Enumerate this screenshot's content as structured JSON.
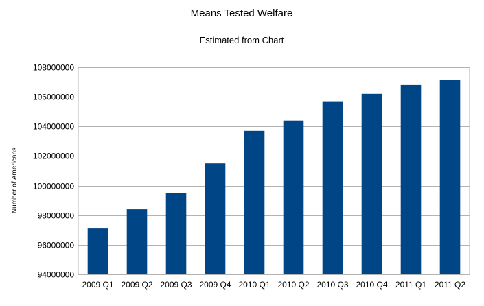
{
  "chart_data": {
    "type": "bar",
    "title": "Means Tested Welfare",
    "subtitle": "Estimated from Chart",
    "xlabel": "",
    "ylabel": "Number of Americans",
    "categories": [
      "2009 Q1",
      "2009 Q2",
      "2009 Q3",
      "2009 Q4",
      "2010 Q1",
      "2010 Q2",
      "2010 Q3",
      "2010 Q4",
      "2011 Q1",
      "2011 Q2"
    ],
    "values": [
      97100000,
      98400000,
      99500000,
      101500000,
      103700000,
      104400000,
      105700000,
      106200000,
      106800000,
      107150000
    ],
    "ylim": [
      94000000,
      108000000
    ],
    "yticks": [
      "94000000",
      "96000000",
      "98000000",
      "100000000",
      "102000000",
      "104000000",
      "106000000",
      "108000000"
    ],
    "grid": true,
    "legend": "none",
    "colors": {
      "bar": "#004586",
      "grid": "#b3b3b3",
      "background": "#ffffff"
    }
  }
}
